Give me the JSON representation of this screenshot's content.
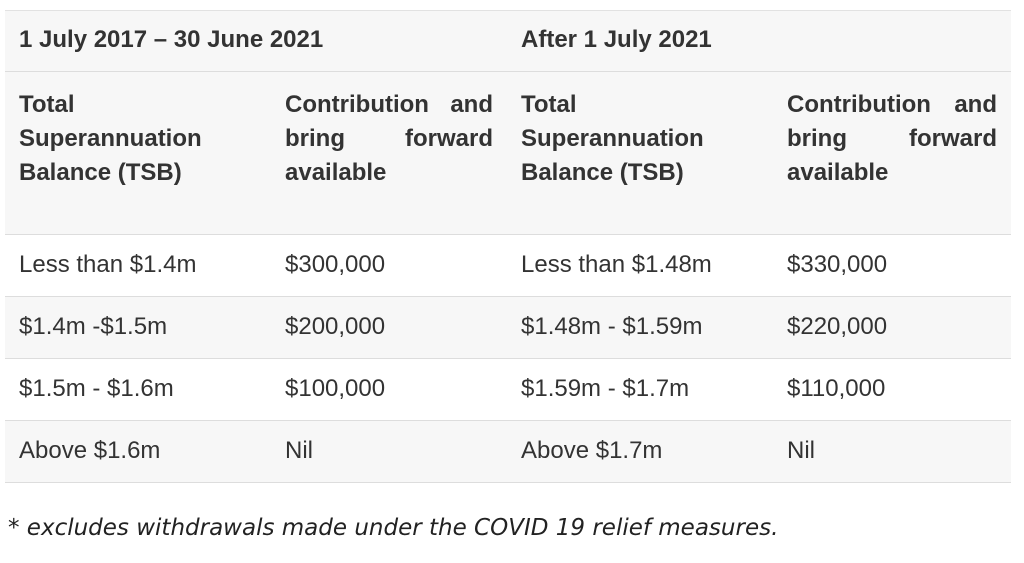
{
  "table": {
    "period_headers": [
      "1 July 2017 – 30 June 2021",
      "After 1 July 2021"
    ],
    "column_headers": [
      "Total Superannuation Balance (TSB)",
      "Contribution and bring forward available",
      "Total Superannuation Balance (TSB)",
      "Contribution and bring forward available"
    ],
    "rows": [
      [
        "Less than $1.4m",
        "$300,000",
        "Less than $1.48m",
        "$330,000"
      ],
      [
        "$1.4m -$1.5m",
        "$200,000",
        "$1.48m - $1.59m",
        "$220,000"
      ],
      [
        "$1.5m - $1.6m",
        "$100,000",
        "$1.59m - $1.7m",
        "$110,000"
      ],
      [
        "Above $1.6m",
        "Nil",
        "Above $1.7m",
        "Nil"
      ]
    ]
  },
  "footnote": "* excludes withdrawals made under the COVID 19 relief measures."
}
